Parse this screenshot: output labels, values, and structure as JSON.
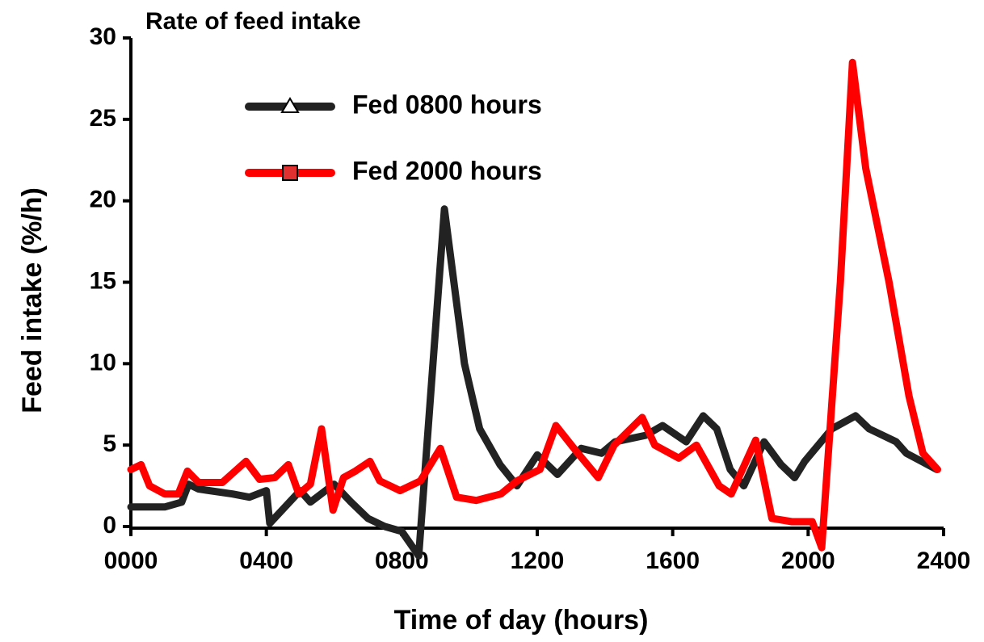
{
  "chart_data": {
    "type": "line",
    "title": "Rate of feed intake",
    "x_label": "Time of day (hours)",
    "y_label": "Feed intake (%/h)",
    "xlim": [
      0,
      24
    ],
    "ylim": [
      0,
      30
    ],
    "xticks": [
      {
        "value": 0,
        "label": "0000"
      },
      {
        "value": 4,
        "label": "0400"
      },
      {
        "value": 8,
        "label": "0800"
      },
      {
        "value": 12,
        "label": "1200"
      },
      {
        "value": 16,
        "label": "1600"
      },
      {
        "value": 20,
        "label": "2000"
      },
      {
        "value": 24,
        "label": "2400"
      }
    ],
    "yticks": [
      0,
      5,
      10,
      15,
      20,
      25,
      30
    ],
    "series": [
      {
        "name": "Fed 0800 hours",
        "color": "#222222",
        "x": [
          0,
          0.5,
          1,
          1.5,
          1.7,
          2,
          3,
          3.5,
          4,
          4.1,
          5,
          5.3,
          6,
          6.5,
          7,
          7.5,
          8,
          8.5,
          9.26,
          9.85,
          10.3,
          10.9,
          11.4,
          12.0,
          12.6,
          13.3,
          13.9,
          14.3,
          15.2,
          15.7,
          16.4,
          16.9,
          17.3,
          17.7,
          18.1,
          18.7,
          19.2,
          19.6,
          19.9,
          20.7,
          21.4,
          21.8,
          22.6,
          22.9,
          23.8
        ],
        "values": [
          1.2,
          1.2,
          1.2,
          1.5,
          2.6,
          2.3,
          2.0,
          1.8,
          2.2,
          0.2,
          2.2,
          1.5,
          2.6,
          1.5,
          0.5,
          0.0,
          -0.3,
          -1.8,
          19.5,
          10,
          6,
          3.8,
          2.5,
          4.4,
          3.2,
          4.8,
          4.5,
          5.2,
          5.6,
          6.2,
          5.2,
          6.8,
          6.0,
          3.5,
          2.5,
          5.2,
          3.8,
          3.0,
          4.0,
          6.0,
          6.8,
          6.0,
          5.2,
          4.5,
          3.5
        ]
      },
      {
        "name": "Fed 2000 hours",
        "color": "#ff0000",
        "x": [
          0,
          0.3,
          0.55,
          1.0,
          1.4,
          1.67,
          2.0,
          2.7,
          3.4,
          3.8,
          4.25,
          4.65,
          4.96,
          5.3,
          5.63,
          5.97,
          6.28,
          6.63,
          7.06,
          7.35,
          7.95,
          8.55,
          9.14,
          9.62,
          10.2,
          10.93,
          11.4,
          12.08,
          12.55,
          13.2,
          13.8,
          14.27,
          15.1,
          15.47,
          16.18,
          16.7,
          17.37,
          17.73,
          18.45,
          18.93,
          19.52,
          20.12,
          20.4,
          20.95,
          21.31,
          21.7,
          22.39,
          22.98,
          23.39,
          23.82
        ],
        "values": [
          3.5,
          3.8,
          2.5,
          2.0,
          2.0,
          3.4,
          2.7,
          2.7,
          4.0,
          2.9,
          3.0,
          3.8,
          2.0,
          2.6,
          6.0,
          1.0,
          3.0,
          3.4,
          4.0,
          2.8,
          2.2,
          2.8,
          4.8,
          1.8,
          1.6,
          2.0,
          2.8,
          3.5,
          6.2,
          4.5,
          3.0,
          5.0,
          6.7,
          5.0,
          4.2,
          5.0,
          2.5,
          2.0,
          5.3,
          0.5,
          0.3,
          0.3,
          -1.3,
          15,
          28.5,
          22,
          15,
          8,
          4.5,
          3.5
        ]
      }
    ]
  }
}
